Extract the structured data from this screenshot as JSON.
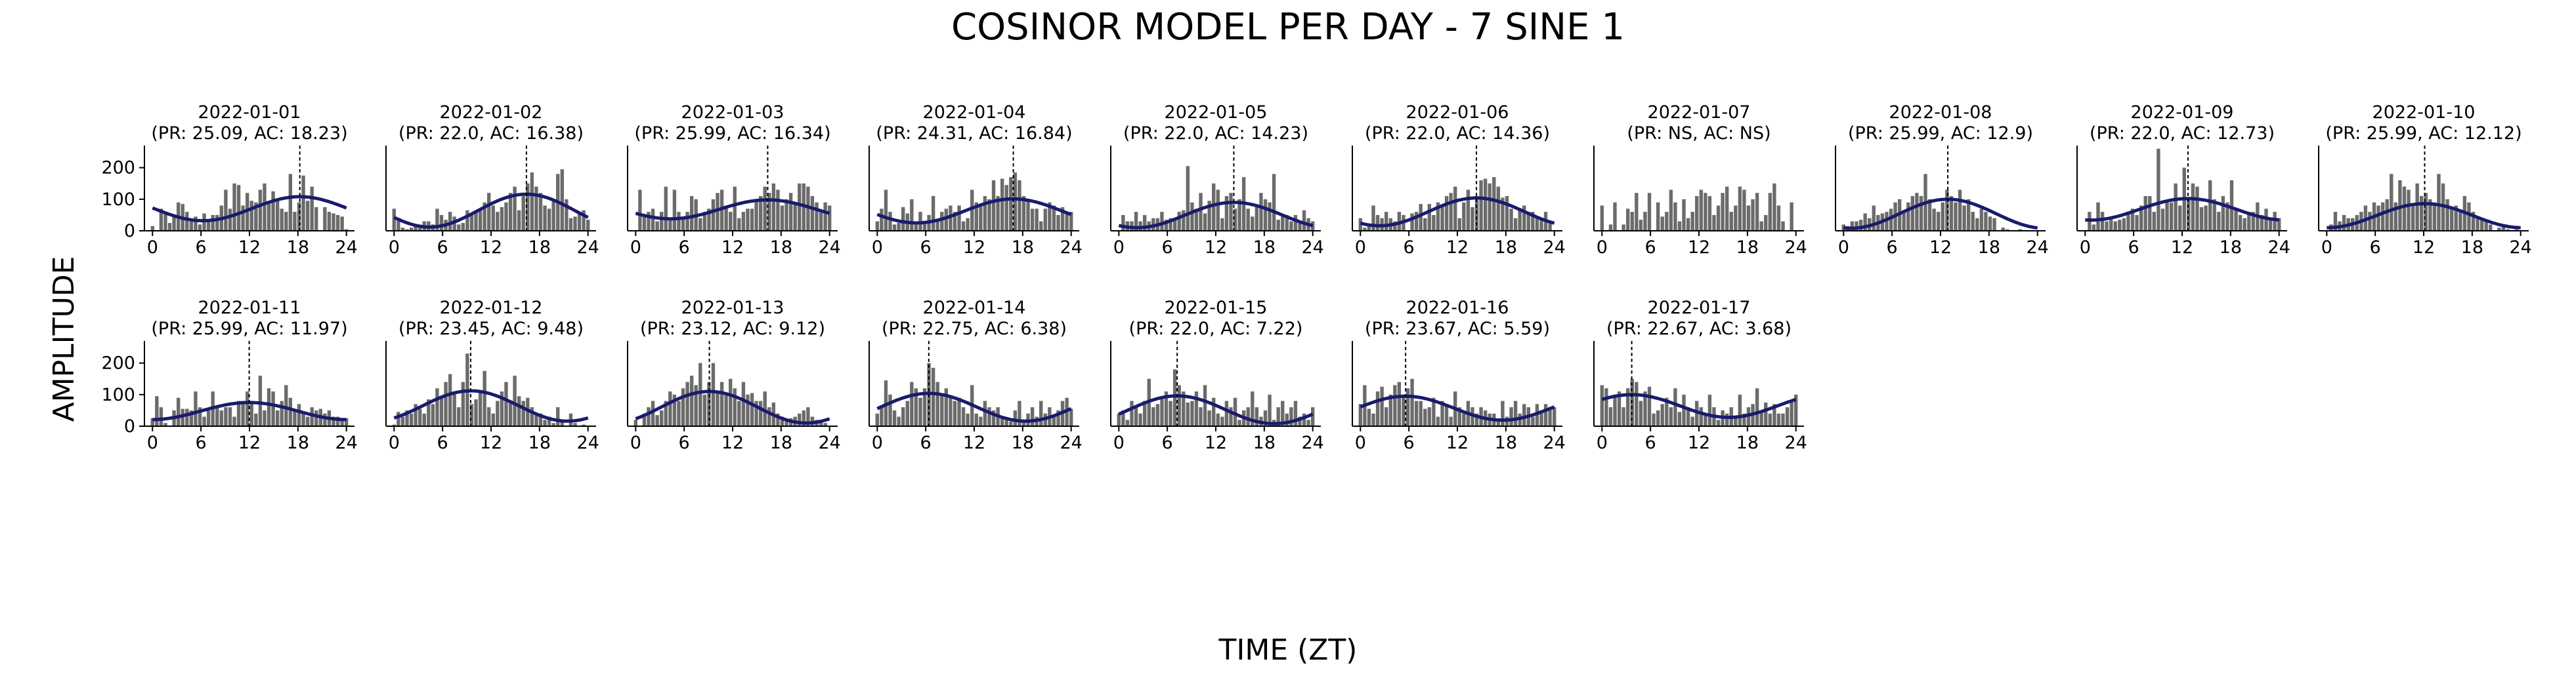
{
  "chart_data": {
    "type": "bar",
    "title": "COSINOR MODEL PER DAY - 7 SINE 1",
    "xlabel": "TIME (ZT)",
    "ylabel": "AMPLITUDE",
    "xlim": [
      -1,
      25
    ],
    "ylim": [
      0,
      270
    ],
    "xticks": [
      0,
      6,
      12,
      18,
      24
    ],
    "yticks": [
      0,
      100,
      200
    ],
    "grid": false,
    "colors": {
      "bar": "#6b6b6b",
      "fit": "#1a1a6e",
      "acrophase_line": "#000000"
    },
    "panels": [
      {
        "date": "2022-01-01",
        "stats": "(PR: 25.09, AC: 18.23)",
        "mesor": 70,
        "amplitude": 38,
        "acrophase": 18.23,
        "show_fit": true,
        "values": [
          15,
          0,
          70,
          60,
          25,
          45,
          90,
          85,
          60,
          30,
          45,
          20,
          55,
          35,
          50,
          50,
          80,
          130,
          70,
          150,
          145,
          80,
          120,
          95,
          90,
          130,
          150,
          90,
          125,
          100,
          70,
          60,
          180,
          60,
          90,
          175,
          95,
          140,
          75,
          0,
          75,
          60,
          55,
          50,
          45,
          5
        ]
      },
      {
        "date": "2022-01-02",
        "stats": "(PR: 22.0, AC: 16.38)",
        "mesor": 64,
        "amplitude": 52,
        "acrophase": 16.38,
        "show_fit": true,
        "values": [
          70,
          40,
          10,
          5,
          10,
          20,
          15,
          30,
          30,
          20,
          70,
          50,
          35,
          60,
          45,
          20,
          25,
          65,
          50,
          60,
          70,
          90,
          120,
          80,
          60,
          75,
          90,
          120,
          140,
          65,
          110,
          150,
          185,
          140,
          120,
          80,
          70,
          100,
          180,
          195,
          100,
          40,
          45,
          60,
          65,
          35
        ]
      },
      {
        "date": "2022-01-03",
        "stats": "(PR: 25.99, AC: 16.34)",
        "mesor": 68,
        "amplitude": 30,
        "acrophase": 16.34,
        "show_fit": true,
        "values": [
          0,
          130,
          50,
          60,
          70,
          30,
          60,
          140,
          40,
          130,
          60,
          45,
          60,
          110,
          100,
          40,
          60,
          70,
          100,
          120,
          130,
          80,
          60,
          140,
          40,
          60,
          70,
          70,
          100,
          110,
          140,
          120,
          150,
          130,
          80,
          100,
          120,
          90,
          150,
          150,
          140,
          110,
          90,
          60,
          90,
          80
        ]
      },
      {
        "date": "2022-01-04",
        "stats": "(PR: 24.31, AC: 16.84)",
        "mesor": 63,
        "amplitude": 38,
        "acrophase": 16.84,
        "show_fit": true,
        "values": [
          30,
          70,
          130,
          60,
          20,
          25,
          75,
          55,
          100,
          30,
          60,
          30,
          50,
          110,
          30,
          60,
          70,
          80,
          60,
          80,
          30,
          40,
          130,
          90,
          80,
          110,
          100,
          160,
          110,
          165,
          145,
          170,
          185,
          160,
          110,
          100,
          70,
          70,
          30,
          70,
          90,
          80,
          50,
          75,
          60,
          60
        ]
      },
      {
        "date": "2022-01-05",
        "stats": "(PR: 22.0, AC: 14.23)",
        "mesor": 50,
        "amplitude": 40,
        "acrophase": 14.23,
        "show_fit": true,
        "values": [
          0,
          50,
          30,
          30,
          60,
          30,
          50,
          30,
          40,
          40,
          60,
          35,
          40,
          40,
          60,
          65,
          205,
          90,
          70,
          120,
          55,
          95,
          150,
          130,
          40,
          110,
          120,
          70,
          100,
          170,
          70,
          45,
          80,
          120,
          100,
          90,
          180,
          35,
          45,
          50,
          30,
          50,
          30,
          65,
          40,
          30
        ]
      },
      {
        "date": "2022-01-06",
        "stats": "(PR: 22.0, AC: 14.36)",
        "mesor": 60,
        "amplitude": 44,
        "acrophase": 14.36,
        "show_fit": true,
        "values": [
          40,
          10,
          20,
          80,
          50,
          40,
          60,
          40,
          30,
          60,
          50,
          0,
          55,
          60,
          85,
          40,
          85,
          50,
          90,
          80,
          110,
          120,
          140,
          40,
          90,
          130,
          75,
          110,
          160,
          165,
          150,
          170,
          140,
          105,
          110,
          70,
          40,
          70,
          80,
          60,
          60,
          40,
          40,
          60,
          30,
          0
        ]
      },
      {
        "date": "2022-01-07",
        "stats": "(PR: NS, AC: NS)",
        "mesor": 0,
        "amplitude": 0,
        "acrophase": 0,
        "show_fit": false,
        "values": [
          80,
          0,
          20,
          90,
          0,
          20,
          70,
          60,
          120,
          35,
          60,
          120,
          0,
          90,
          45,
          60,
          130,
          90,
          30,
          100,
          40,
          60,
          110,
          130,
          120,
          110,
          50,
          80,
          120,
          140,
          60,
          80,
          140,
          130,
          80,
          100,
          120,
          30,
          50,
          120,
          150,
          80,
          30,
          0,
          90,
          0
        ]
      },
      {
        "date": "2022-01-08",
        "stats": "(PR: 25.99, AC: 12.9)",
        "mesor": 54,
        "amplitude": 46,
        "acrophase": 12.9,
        "show_fit": true,
        "values": [
          20,
          15,
          30,
          30,
          35,
          55,
          40,
          80,
          50,
          55,
          60,
          70,
          90,
          100,
          60,
          90,
          110,
          120,
          110,
          180,
          100,
          70,
          60,
          90,
          130,
          110,
          90,
          130,
          80,
          100,
          60,
          40,
          70,
          60,
          45,
          40,
          0,
          10,
          5,
          0,
          0,
          5,
          0,
          0,
          0,
          0
        ]
      },
      {
        "date": "2022-01-09",
        "stats": "(PR: 22.0, AC: 12.73)",
        "mesor": 68,
        "amplitude": 34,
        "acrophase": 12.73,
        "show_fit": true,
        "values": [
          0,
          60,
          20,
          90,
          60,
          30,
          40,
          30,
          35,
          40,
          60,
          70,
          50,
          80,
          110,
          110,
          60,
          260,
          70,
          90,
          90,
          150,
          80,
          200,
          100,
          150,
          140,
          75,
          80,
          160,
          100,
          60,
          110,
          90,
          160,
          70,
          50,
          40,
          60,
          60,
          90,
          50,
          70,
          40,
          60,
          40
        ]
      },
      {
        "date": "2022-01-10",
        "stats": "(PR: 25.99, AC: 12.12)",
        "mesor": 48,
        "amplitude": 38,
        "acrophase": 12.12,
        "show_fit": true,
        "values": [
          0,
          20,
          60,
          30,
          50,
          40,
          40,
          50,
          60,
          80,
          60,
          90,
          80,
          90,
          100,
          180,
          90,
          160,
          140,
          130,
          80,
          150,
          110,
          120,
          100,
          90,
          180,
          150,
          100,
          75,
          80,
          60,
          110,
          90,
          60,
          40,
          35,
          30,
          20,
          0,
          10,
          20,
          5,
          0,
          5,
          0
        ]
      },
      {
        "date": "2022-01-11",
        "stats": "(PR: 25.99, AC: 11.97)",
        "mesor": 48,
        "amplitude": 27,
        "acrophase": 11.97,
        "show_fit": true,
        "values": [
          25,
          95,
          60,
          10,
          0,
          50,
          90,
          55,
          55,
          50,
          110,
          60,
          30,
          50,
          110,
          60,
          50,
          60,
          60,
          30,
          80,
          80,
          110,
          80,
          40,
          160,
          50,
          120,
          110,
          50,
          80,
          130,
          90,
          50,
          70,
          45,
          30,
          60,
          50,
          55,
          40,
          50,
          30,
          30,
          20,
          25
        ]
      },
      {
        "date": "2022-01-12",
        "stats": "(PR: 23.45, AC: 9.48)",
        "mesor": 64,
        "amplitude": 48,
        "acrophase": 9.48,
        "show_fit": true,
        "values": [
          5,
          45,
          30,
          50,
          40,
          70,
          55,
          40,
          85,
          70,
          120,
          90,
          140,
          165,
          110,
          60,
          140,
          230,
          70,
          85,
          110,
          175,
          60,
          40,
          80,
          110,
          140,
          80,
          160,
          95,
          80,
          90,
          60,
          40,
          40,
          20,
          30,
          10,
          60,
          20,
          0,
          40,
          10,
          0,
          5,
          0
        ]
      },
      {
        "date": "2022-01-13",
        "stats": "(PR: 23.12, AC: 9.12)",
        "mesor": 60,
        "amplitude": 50,
        "acrophase": 9.12,
        "show_fit": true,
        "values": [
          20,
          0,
          40,
          60,
          80,
          35,
          50,
          80,
          110,
          100,
          80,
          120,
          140,
          160,
          130,
          200,
          100,
          140,
          200,
          110,
          140,
          105,
          150,
          120,
          80,
          140,
          100,
          105,
          80,
          80,
          110,
          60,
          75,
          40,
          30,
          20,
          25,
          30,
          40,
          50,
          60,
          30,
          20,
          15,
          10,
          0
        ]
      },
      {
        "date": "2022-01-14",
        "stats": "(PR: 22.75, AC: 6.38)",
        "mesor": 60,
        "amplitude": 44,
        "acrophase": 6.38,
        "show_fit": true,
        "values": [
          40,
          60,
          145,
          100,
          50,
          30,
          60,
          80,
          140,
          120,
          90,
          120,
          200,
          185,
          140,
          100,
          120,
          95,
          80,
          90,
          60,
          40,
          130,
          40,
          30,
          80,
          60,
          50,
          60,
          30,
          20,
          15,
          50,
          80,
          20,
          40,
          60,
          30,
          80,
          40,
          60,
          30,
          50,
          80,
          90,
          55
        ]
      },
      {
        "date": "2022-01-15",
        "stats": "(PR: 22.0, AC: 7.22)",
        "mesor": 52,
        "amplitude": 44,
        "acrophase": 7.22,
        "show_fit": true,
        "values": [
          40,
          50,
          20,
          80,
          60,
          40,
          80,
          150,
          60,
          70,
          90,
          110,
          80,
          180,
          130,
          110,
          75,
          80,
          110,
          60,
          130,
          50,
          90,
          40,
          30,
          80,
          60,
          90,
          20,
          50,
          60,
          110,
          60,
          30,
          50,
          100,
          20,
          60,
          80,
          40,
          60,
          80,
          30,
          40,
          20,
          60
        ]
      },
      {
        "date": "2022-01-16",
        "stats": "(PR: 23.67, AC: 5.59)",
        "mesor": 57,
        "amplitude": 38,
        "acrophase": 5.59,
        "show_fit": true,
        "values": [
          70,
          130,
          55,
          40,
          110,
          125,
          60,
          100,
          130,
          140,
          95,
          120,
          150,
          80,
          80,
          55,
          60,
          90,
          30,
          80,
          70,
          30,
          110,
          60,
          40,
          80,
          60,
          40,
          60,
          50,
          40,
          40,
          25,
          80,
          30,
          60,
          80,
          40,
          70,
          60,
          30,
          70,
          50,
          70,
          60,
          60
        ]
      },
      {
        "date": "2022-01-17",
        "stats": "(PR: 22.67, AC: 3.68)",
        "mesor": 64,
        "amplitude": 36,
        "acrophase": 3.68,
        "show_fit": true,
        "values": [
          130,
          120,
          60,
          100,
          110,
          60,
          120,
          150,
          140,
          80,
          110,
          125,
          40,
          50,
          70,
          90,
          60,
          120,
          45,
          100,
          60,
          30,
          80,
          60,
          40,
          100,
          60,
          20,
          50,
          40,
          60,
          30,
          100,
          40,
          60,
          70,
          120,
          50,
          75,
          40,
          70,
          40,
          40,
          60,
          80,
          100
        ]
      }
    ]
  }
}
